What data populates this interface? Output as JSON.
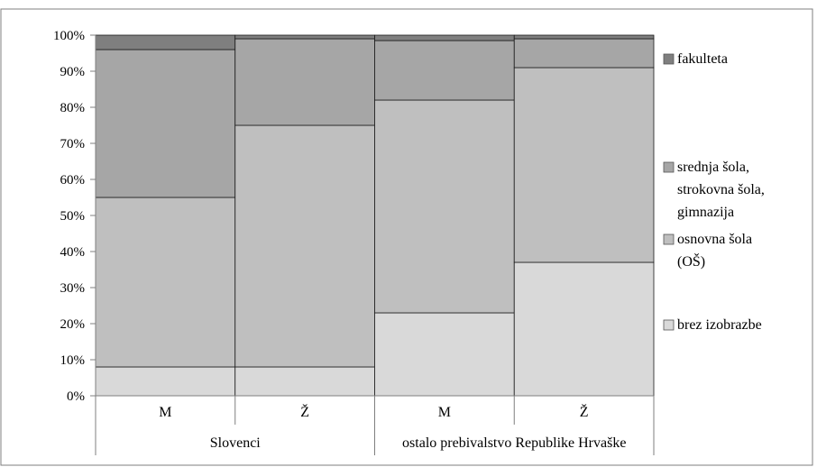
{
  "chart_data": {
    "type": "bar",
    "stacked": true,
    "normalized": true,
    "categories": [
      "M",
      "Ž",
      "M",
      "Ž"
    ],
    "groups": [
      "Slovenci",
      "Slovenci",
      "ostalo prebivalstvo Republike Hrvaške",
      "ostalo prebivalstvo Republike Hrvaške"
    ],
    "group_labels": [
      "Slovenci",
      "ostalo prebivalstvo Republike Hrvaške"
    ],
    "series": [
      {
        "name": "brez izobrazbe",
        "values": [
          8,
          8,
          23,
          37
        ],
        "color": "#d9d9d9"
      },
      {
        "name": "osnovna šola (OŠ)",
        "values": [
          47,
          67,
          59,
          54
        ],
        "color": "#bfbfbf"
      },
      {
        "name": "srednja šola, strokovna šola, gimnazija",
        "values": [
          41,
          24,
          16.5,
          8
        ],
        "color": "#a6a6a6"
      },
      {
        "name": "fakulteta",
        "values": [
          4,
          1,
          1.5,
          1
        ],
        "color": "#7f7f7f"
      }
    ],
    "legend_lines": [
      [
        "fakulteta"
      ],
      [
        "srednja šola,",
        "strokovna šola,",
        "gimnazija"
      ],
      [
        "osnovna šola",
        "(OŠ)"
      ],
      [
        "brez izobrazbe"
      ]
    ],
    "y_ticks": [
      "0%",
      "10%",
      "20%",
      "30%",
      "40%",
      "50%",
      "60%",
      "70%",
      "80%",
      "90%",
      "100%"
    ],
    "ylim": [
      0,
      100
    ],
    "grid": false,
    "legend_position": "right"
  }
}
